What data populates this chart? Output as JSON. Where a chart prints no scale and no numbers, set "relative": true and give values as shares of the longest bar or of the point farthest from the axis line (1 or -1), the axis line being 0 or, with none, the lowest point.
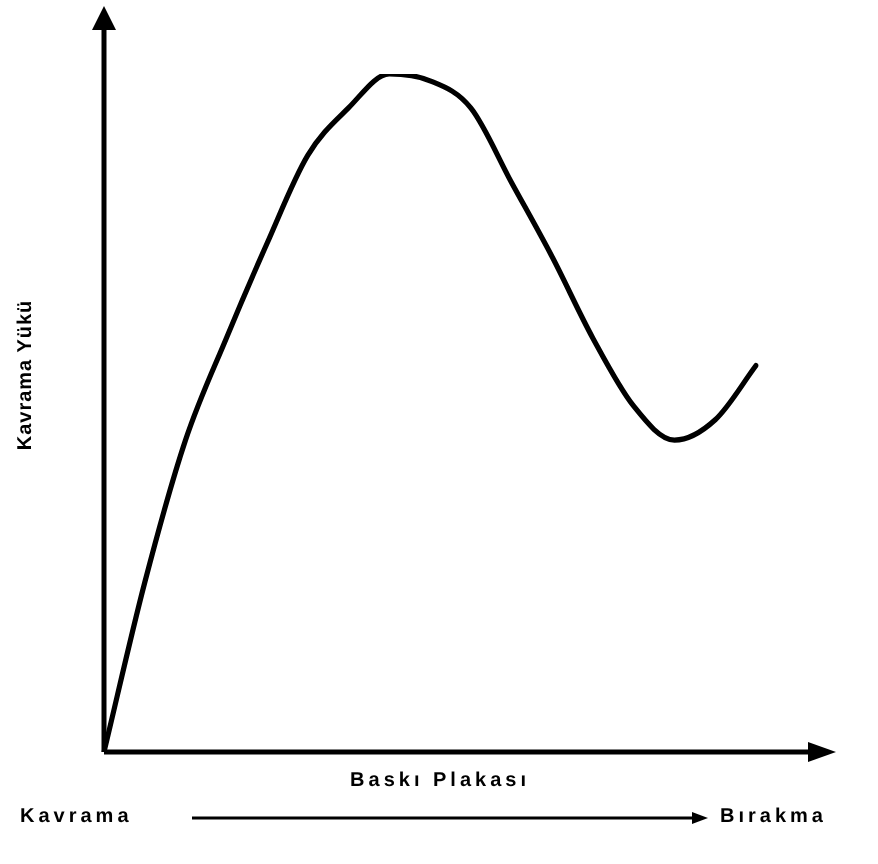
{
  "chart_data": {
    "type": "line",
    "relative": true,
    "xlabel": "Baskı Plakası",
    "ylabel": "Kavrama Yükü",
    "annotations": [
      "Kavrama",
      "Bırakma"
    ],
    "categories": [
      null,
      null,
      null,
      null,
      null,
      null,
      null,
      null,
      null,
      null,
      null,
      null,
      null,
      null,
      null,
      null,
      null
    ],
    "series": [
      {
        "color": "#000000",
        "values": [
          0,
          0.25,
          0.46,
          0.61,
          0.75,
          0.88,
          0.95,
          1,
          0.99,
          0.95,
          0.84,
          0.73,
          0.61,
          0.51,
          0.46,
          0.49,
          0.57
        ]
      }
    ],
    "marker": "none",
    "line_style": "solid",
    "legend": false
  }
}
